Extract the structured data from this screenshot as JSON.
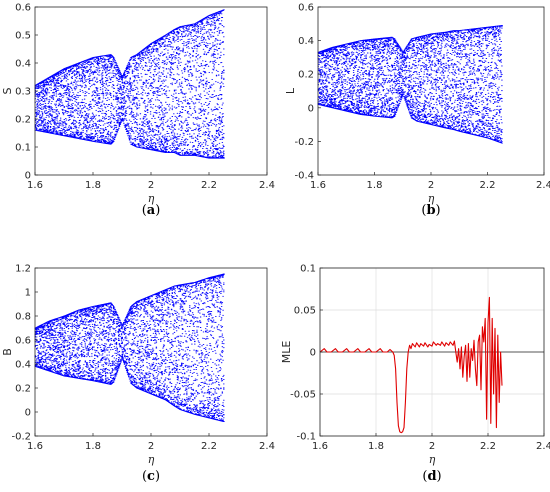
{
  "colors": {
    "bifurcation": "#0000ff",
    "mle_line": "#e00000",
    "axis": "#262626",
    "grid": "#dedede"
  },
  "chart_data": [
    {
      "id": "a",
      "type": "scatter",
      "caption": "a",
      "xlabel": "η",
      "ylabel": "S",
      "xlim": [
        1.6,
        2.4
      ],
      "ylim": [
        0,
        0.6
      ],
      "xticks": [
        "1.6",
        "1.8",
        "2",
        "2.2",
        "2.4"
      ],
      "yticks": [
        "0",
        "0.1",
        "0.2",
        "0.3",
        "0.4",
        "0.5",
        "0.6"
      ],
      "grid": false,
      "x_range_of_points": [
        1.6,
        2.25
      ],
      "envelope": {
        "eta": [
          1.6,
          1.65,
          1.7,
          1.75,
          1.8,
          1.86,
          1.87,
          1.9,
          1.93,
          1.95,
          2.0,
          2.05,
          2.08,
          2.1,
          2.15,
          2.2,
          2.25
        ],
        "upper": [
          0.32,
          0.35,
          0.38,
          0.4,
          0.42,
          0.43,
          0.42,
          0.35,
          0.42,
          0.43,
          0.47,
          0.5,
          0.52,
          0.53,
          0.54,
          0.57,
          0.59
        ],
        "lower": [
          0.16,
          0.15,
          0.14,
          0.13,
          0.12,
          0.11,
          0.12,
          0.2,
          0.11,
          0.1,
          0.09,
          0.08,
          0.08,
          0.07,
          0.07,
          0.06,
          0.06
        ]
      }
    },
    {
      "id": "b",
      "type": "scatter",
      "caption": "b",
      "xlabel": "η",
      "ylabel": "L",
      "xlim": [
        1.6,
        2.4
      ],
      "ylim": [
        -0.4,
        0.6
      ],
      "xticks": [
        "1.6",
        "1.8",
        "2",
        "2.2",
        "2.4"
      ],
      "yticks": [
        "-0.4",
        "-0.2",
        "0",
        "0.2",
        "0.4",
        "0.6"
      ],
      "grid": false,
      "x_range_of_points": [
        1.6,
        2.25
      ],
      "envelope": {
        "eta": [
          1.6,
          1.65,
          1.7,
          1.75,
          1.8,
          1.86,
          1.87,
          1.9,
          1.93,
          1.95,
          2.0,
          2.05,
          2.08,
          2.1,
          2.15,
          2.2,
          2.25
        ],
        "upper": [
          0.33,
          0.36,
          0.38,
          0.4,
          0.41,
          0.42,
          0.41,
          0.33,
          0.41,
          0.42,
          0.44,
          0.45,
          0.46,
          0.46,
          0.47,
          0.48,
          0.49
        ],
        "lower": [
          0.02,
          0.0,
          -0.02,
          -0.04,
          -0.05,
          -0.06,
          -0.05,
          0.08,
          -0.06,
          -0.08,
          -0.1,
          -0.12,
          -0.13,
          -0.14,
          -0.16,
          -0.18,
          -0.21
        ]
      }
    },
    {
      "id": "c",
      "type": "scatter",
      "caption": "c",
      "xlabel": "η",
      "ylabel": "B",
      "xlim": [
        1.6,
        2.4
      ],
      "ylim": [
        -0.2,
        1.2
      ],
      "xticks": [
        "1.6",
        "1.8",
        "2",
        "2.2",
        "2.4"
      ],
      "yticks": [
        "-0.2",
        "0",
        "0.2",
        "0.4",
        "0.6",
        "0.8",
        "1",
        "1.2"
      ],
      "grid": false,
      "x_range_of_points": [
        1.6,
        2.25
      ],
      "envelope": {
        "eta": [
          1.6,
          1.65,
          1.7,
          1.75,
          1.8,
          1.86,
          1.87,
          1.9,
          1.93,
          1.95,
          2.0,
          2.05,
          2.08,
          2.1,
          2.15,
          2.2,
          2.25
        ],
        "upper": [
          0.7,
          0.76,
          0.8,
          0.85,
          0.88,
          0.91,
          0.88,
          0.72,
          0.88,
          0.92,
          0.97,
          1.02,
          1.05,
          1.06,
          1.08,
          1.12,
          1.15
        ],
        "lower": [
          0.38,
          0.34,
          0.3,
          0.28,
          0.26,
          0.23,
          0.25,
          0.45,
          0.24,
          0.2,
          0.15,
          0.1,
          0.05,
          0.02,
          -0.02,
          -0.05,
          -0.08
        ]
      }
    },
    {
      "id": "d",
      "type": "line",
      "caption": "d",
      "xlabel": "η",
      "ylabel": "MLE",
      "xlim": [
        1.6,
        2.4
      ],
      "ylim": [
        -0.1,
        0.1
      ],
      "xticks": [
        "1.6",
        "1.8",
        "2",
        "2.2",
        "2.4"
      ],
      "yticks": [
        "-0.1",
        "-0.05",
        "0",
        "0.05",
        "0.1"
      ],
      "grid": true,
      "reference_line_y": 0,
      "series": [
        {
          "x": [
            1.6,
            1.615,
            1.625,
            1.64,
            1.655,
            1.665,
            1.68,
            1.695,
            1.705,
            1.72,
            1.735,
            1.745,
            1.76,
            1.775,
            1.785,
            1.8,
            1.815,
            1.825,
            1.84,
            1.85,
            1.86,
            1.865,
            1.87,
            1.875,
            1.88,
            1.885,
            1.89,
            1.895,
            1.9,
            1.905,
            1.91,
            1.915,
            1.92,
            1.925,
            1.93,
            1.94,
            1.945,
            1.955,
            1.96,
            1.97,
            1.975,
            1.985,
            1.99,
            2.0,
            2.005,
            2.015,
            2.02,
            2.03,
            2.035,
            2.045,
            2.05,
            2.06,
            2.065,
            2.075,
            2.08,
            2.085,
            2.09,
            2.095,
            2.1,
            2.105,
            2.11,
            2.115,
            2.12,
            2.125,
            2.13,
            2.135,
            2.14,
            2.145,
            2.15,
            2.155,
            2.16,
            2.165,
            2.17,
            2.175,
            2.18,
            2.185,
            2.19,
            2.195,
            2.2,
            2.205,
            2.21,
            2.215,
            2.22,
            2.225,
            2.23,
            2.235,
            2.24,
            2.245,
            2.25
          ],
          "y": [
            0.0,
            0.004,
            0.0,
            0.0,
            0.004,
            0.0,
            0.0,
            0.004,
            0.0,
            0.0,
            0.004,
            0.0,
            0.0,
            0.004,
            0.0,
            0.0,
            0.004,
            0.0,
            0.0,
            0.003,
            0.0,
            -0.004,
            -0.02,
            -0.06,
            -0.088,
            -0.095,
            -0.096,
            -0.095,
            -0.09,
            -0.06,
            -0.02,
            0.0,
            0.008,
            0.004,
            0.01,
            0.006,
            0.011,
            0.006,
            0.01,
            0.007,
            0.011,
            0.006,
            0.009,
            0.007,
            0.012,
            0.008,
            0.01,
            0.008,
            0.012,
            0.007,
            0.011,
            0.008,
            0.012,
            0.008,
            0.013,
            0.0,
            -0.012,
            0.004,
            -0.02,
            0.006,
            -0.03,
            -0.005,
            0.008,
            -0.035,
            0.01,
            -0.03,
            0.004,
            -0.01,
            0.014,
            -0.02,
            -0.04,
            0.012,
            0.02,
            -0.045,
            0.03,
            0.012,
            0.04,
            -0.08,
            0.035,
            0.065,
            -0.085,
            0.04,
            -0.05,
            0.028,
            -0.09,
            0.02,
            -0.06,
            0.0,
            -0.04
          ]
        }
      ]
    }
  ]
}
